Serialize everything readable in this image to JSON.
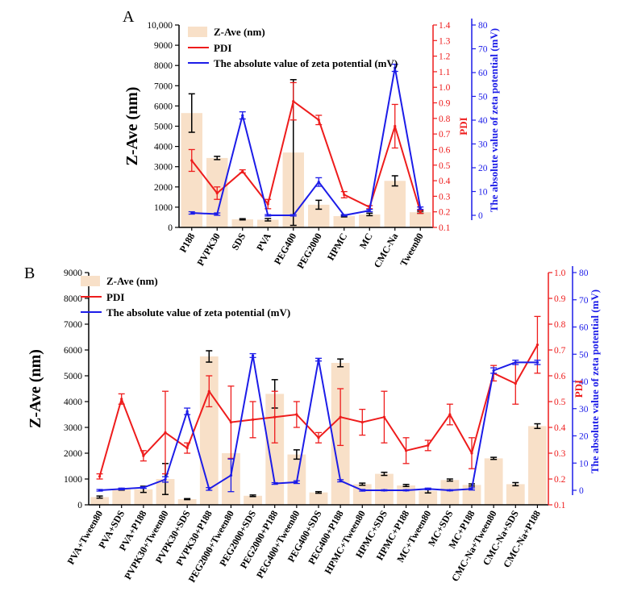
{
  "panels": [
    {
      "panel_label": "A",
      "legend": {
        "bar": "Z-Ave (nm)",
        "line": "PDI",
        "zeta": "The absolute value of zeta potential (mV)"
      },
      "axes": {
        "left_label": "Z-Ave",
        "left_unit": "(nm)",
        "middle_label": "PDI",
        "right_label": "The absolute value of zeta potential (mV)",
        "left_ticks": [
          "0",
          "1000",
          "2000",
          "3000",
          "4000",
          "5000",
          "6000",
          "7000",
          "8000",
          "9000",
          "10,000"
        ],
        "middle_ticks": [
          "0.1",
          "0.2",
          "0.3",
          "0.4",
          "0.5",
          "0.6",
          "0.7",
          "0.8",
          "0.9",
          "1.0",
          "1.1",
          "1.2",
          "1.3",
          "1.4"
        ],
        "right_ticks": [
          "0",
          "10",
          "20",
          "30",
          "40",
          "50",
          "60",
          "70",
          "80"
        ]
      }
    },
    {
      "panel_label": "B",
      "legend": {
        "bar": "Z-Ave (nm)",
        "line": "PDI",
        "zeta": "The absolute value of zeta potential (mV)"
      },
      "axes": {
        "left_label": "Z-Ave (nm)",
        "middle_label": "PDI",
        "right_label": "The absolute value of zeta potential (mV)",
        "left_ticks": [
          "0",
          "1000",
          "2000",
          "3000",
          "4000",
          "5000",
          "6000",
          "7000",
          "8000",
          "9000"
        ],
        "middle_ticks": [
          "0.1",
          "0.2",
          "0.3",
          "0.4",
          "0.5",
          "0.6",
          "0.7",
          "0.8",
          "0.9",
          "1.0"
        ],
        "right_ticks": [
          "0",
          "10",
          "20",
          "30",
          "40",
          "50",
          "60",
          "70",
          "80"
        ]
      }
    }
  ],
  "colors": {
    "bar": "#f8e0c8",
    "pdi": "#ee1c1c",
    "zeta": "#1c1ce8",
    "err": "#000000"
  },
  "chart_data": [
    {
      "type": "bar",
      "title": "A",
      "categories": [
        "P188",
        "PVPK30",
        "SDS",
        "PVA",
        "PEG400",
        "PEG2000",
        "HPMC",
        "MC",
        "CMC-Na",
        "Tween80"
      ],
      "ylabel": "Z-Ave (nm)",
      "ylim": [
        0,
        10000
      ],
      "series": [
        {
          "name": "Z-Ave (nm)",
          "axis": "left",
          "values": [
            5650,
            3430,
            400,
            380,
            3700,
            1120,
            560,
            640,
            2300,
            750
          ],
          "errors": [
            950,
            80,
            30,
            60,
            3600,
            220,
            40,
            60,
            250,
            50
          ]
        },
        {
          "name": "PDI",
          "axis": "middle",
          "ylim": [
            0.1,
            1.4
          ],
          "values": [
            0.53,
            0.32,
            0.46,
            0.25,
            0.91,
            0.79,
            0.31,
            0.23,
            0.75,
            0.2
          ],
          "errors": [
            0.07,
            0.04,
            0.01,
            0.03,
            0.12,
            0.03,
            0.02,
            0.01,
            0.14,
            0.01
          ]
        },
        {
          "name": "The absolute value of zeta potential (mV)",
          "axis": "right",
          "ylim": [
            0,
            80
          ],
          "values": [
            1,
            0.5,
            42,
            0,
            0,
            14,
            0,
            2,
            62,
            3
          ],
          "errors": [
            0.5,
            0.5,
            1.5,
            0.3,
            0.3,
            1.8,
            0.3,
            0.5,
            1.5,
            0.5
          ]
        }
      ]
    },
    {
      "type": "bar",
      "title": "B",
      "categories": [
        "PVA+Tween80",
        "PVA+SDS",
        "PVA+P188",
        "PVPK30+Tween80",
        "PVPK30+SDS",
        "PVPK30+P188",
        "PEG2000+Tween80",
        "PEG2000+SDS",
        "PEG2000+P188",
        "PEG400+Tween80",
        "PEG400+SDS",
        "PEG400+P188",
        "HPMC+Tween80",
        "HPMC+SDS",
        "HPMC+P188",
        "MC+Tween80",
        "MC+SDS",
        "MC+P188",
        "CMC-Na+Tween80",
        "CMC-Na+SDS",
        "CMC-Na+P188"
      ],
      "ylabel": "Z-Ave (nm)",
      "ylim": [
        0,
        9000
      ],
      "series": [
        {
          "name": "Z-Ave (nm)",
          "axis": "left",
          "values": [
            300,
            600,
            600,
            1000,
            220,
            5750,
            2000,
            350,
            4300,
            1950,
            480,
            5500,
            800,
            1200,
            750,
            540,
            960,
            770,
            1800,
            800,
            3050
          ],
          "errors": [
            40,
            30,
            120,
            600,
            20,
            220,
            0,
            30,
            550,
            180,
            30,
            150,
            40,
            60,
            40,
            80,
            40,
            40,
            40,
            60,
            90
          ]
        },
        {
          "name": "PDI",
          "axis": "middle",
          "ylim": [
            0.1,
            1.0
          ],
          "values": [
            0.21,
            0.51,
            0.29,
            0.38,
            0.32,
            0.54,
            0.42,
            0.43,
            0.44,
            0.45,
            0.36,
            0.44,
            0.42,
            0.44,
            0.31,
            0.33,
            0.45,
            0.3,
            0.61,
            0.57,
            0.72
          ],
          "errors": [
            0.01,
            0.02,
            0.02,
            0.16,
            0.02,
            0.06,
            0.14,
            0.07,
            0.1,
            0.05,
            0.02,
            0.11,
            0.05,
            0.1,
            0.05,
            0.02,
            0.04,
            0.06,
            0.03,
            0.08,
            0.11
          ]
        },
        {
          "name": "The absolute value of zeta potential (mV)",
          "axis": "right",
          "ylim": [
            0,
            80
          ],
          "values": [
            0,
            0.5,
            1,
            4,
            29,
            0.5,
            5.5,
            49.5,
            2.5,
            3,
            48,
            3.5,
            0,
            0,
            0,
            0.5,
            0,
            0.5,
            44,
            47,
            47
          ],
          "errors": [
            0.3,
            0.3,
            0.3,
            1,
            1.2,
            0.5,
            6,
            0.7,
            0.3,
            0.5,
            0.5,
            0.4,
            0.3,
            0.2,
            0.2,
            0.3,
            0.2,
            0.4,
            1,
            0.8,
            0.8
          ]
        }
      ]
    }
  ]
}
